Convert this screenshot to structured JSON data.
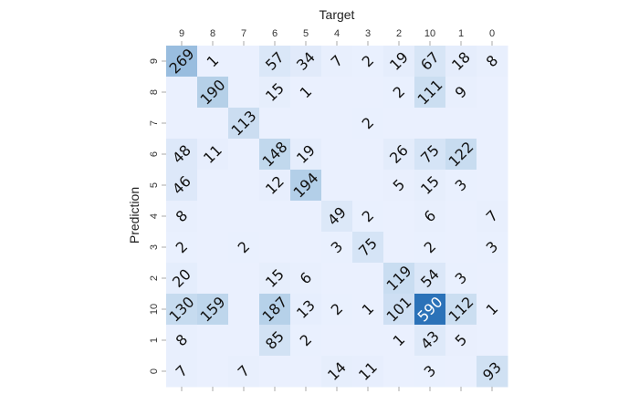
{
  "chart_data": {
    "type": "heatmap",
    "title": "",
    "xlabel": "Target",
    "ylabel": "Prediction",
    "x_position": "top",
    "columns": [
      "9",
      "8",
      "7",
      "6",
      "5",
      "4",
      "3",
      "2",
      "10",
      "1",
      "0"
    ],
    "rows": [
      "9",
      "8",
      "7",
      "6",
      "5",
      "4",
      "3",
      "2",
      "10",
      "1",
      "0"
    ],
    "values": [
      [
        269,
        1,
        0,
        57,
        34,
        7,
        2,
        19,
        67,
        18,
        8
      ],
      [
        0,
        190,
        0,
        15,
        1,
        0,
        0,
        2,
        111,
        9,
        0
      ],
      [
        0,
        0,
        113,
        0,
        0,
        0,
        2,
        0,
        0,
        0,
        0
      ],
      [
        48,
        11,
        0,
        148,
        19,
        0,
        0,
        26,
        75,
        122,
        0
      ],
      [
        46,
        0,
        0,
        12,
        194,
        0,
        0,
        5,
        15,
        3,
        0
      ],
      [
        8,
        0,
        0,
        0,
        0,
        49,
        2,
        0,
        6,
        0,
        7
      ],
      [
        2,
        0,
        2,
        0,
        0,
        3,
        75,
        0,
        2,
        0,
        3
      ],
      [
        20,
        0,
        0,
        15,
        6,
        0,
        0,
        119,
        54,
        3,
        0
      ],
      [
        130,
        159,
        0,
        187,
        13,
        2,
        1,
        101,
        590,
        112,
        1
      ],
      [
        8,
        0,
        0,
        85,
        2,
        0,
        0,
        1,
        43,
        5,
        0
      ],
      [
        7,
        0,
        7,
        0,
        0,
        14,
        11,
        0,
        3,
        0,
        93
      ]
    ],
    "hide_zero_labels": true,
    "vmin": 0,
    "vmax": 590,
    "colormap": {
      "low": "#eaf0fe",
      "mid": "#b9d3ea",
      "high": "#2b72b8"
    },
    "label_color_dark": "#111111",
    "label_color_light": "#ffffff",
    "label_rotation_deg": -45,
    "tick_color": "#aaaaaa",
    "grid": false,
    "colorbar": false
  }
}
